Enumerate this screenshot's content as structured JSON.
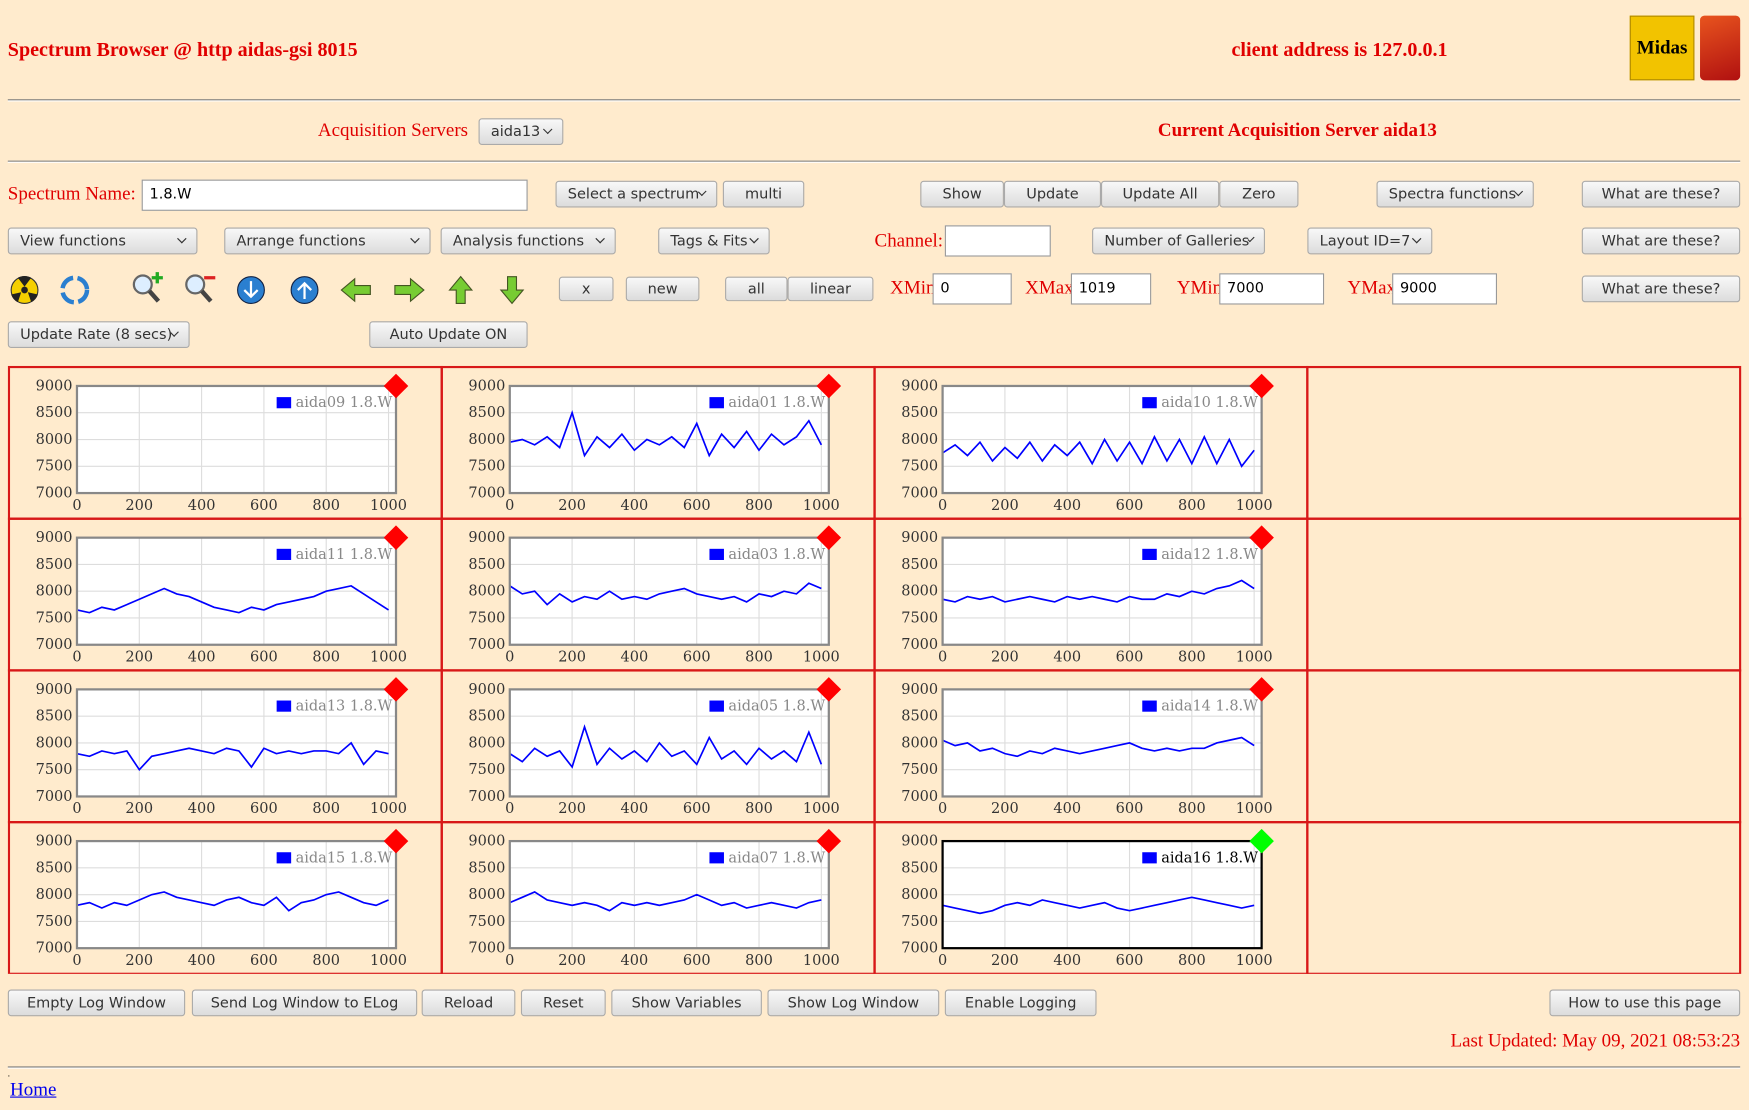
{
  "header": {
    "title": "Spectrum Browser @ http aidas-gsi 8015",
    "client": "client address is 127.0.0.1",
    "logo": "Midas"
  },
  "servers": {
    "label": "Acquisition Servers",
    "selected": "aida13",
    "current": "Current Acquisition Server aida13"
  },
  "row1": {
    "name_label": "Spectrum Name:",
    "name_value": "1.8.W",
    "select_spectrum": "Select a spectrum",
    "multi": "multi",
    "show": "Show",
    "update": "Update",
    "update_all": "Update All",
    "zero": "Zero",
    "spectra_functions": "Spectra functions",
    "help": "What are these?"
  },
  "row2": {
    "view": "View functions",
    "arrange": "Arrange functions",
    "analysis": "Analysis functions",
    "tags": "Tags & Fits",
    "channel_label": "Channel:",
    "galleries": "Number of Galleries",
    "layout": "Layout ID=7",
    "help": "What are these?"
  },
  "row3": {
    "x": "x",
    "new": "new",
    "all": "all",
    "linear": "linear",
    "xmin_label": "XMin",
    "xmin": 0,
    "xmax_label": "XMax",
    "xmax": 1019,
    "ymin_label": "YMin",
    "ymin": 7000,
    "ymax_label": "YMax",
    "ymax": 9000,
    "help": "What are these?"
  },
  "row4": {
    "update_rate": "Update Rate (8 secs)",
    "auto_update": "Auto Update ON"
  },
  "chart_data": [
    {
      "type": "line",
      "status_color": "#ff0000",
      "series": [
        {
          "name": "aida09 1.8.W",
          "color": "#0000ff",
          "values": []
        }
      ],
      "x": [],
      "xlim": [
        0,
        1024
      ],
      "ylim": [
        7000,
        9000
      ],
      "xticks": [
        0,
        200,
        400,
        600,
        800,
        1000
      ],
      "yticks": [
        7000,
        7500,
        8000,
        8500,
        9000
      ],
      "grid": true
    },
    {
      "type": "line",
      "status_color": "#ff0000",
      "series": [
        {
          "name": "aida01 1.8.W",
          "color": "#0000ff",
          "values": [
            7950,
            8000,
            7900,
            8050,
            7850,
            8500,
            7700,
            8050,
            7850,
            8100,
            7800,
            8000,
            7900,
            8050,
            7850,
            8300,
            7700,
            8100,
            7850,
            8150,
            7800,
            8100,
            7900,
            8050,
            8350,
            7900
          ]
        }
      ],
      "x": [
        0,
        40,
        80,
        120,
        160,
        200,
        240,
        280,
        320,
        360,
        400,
        440,
        480,
        520,
        560,
        600,
        640,
        680,
        720,
        760,
        800,
        840,
        880,
        920,
        960,
        1000
      ],
      "xlim": [
        0,
        1024
      ],
      "ylim": [
        7000,
        9000
      ],
      "xticks": [
        0,
        200,
        400,
        600,
        800,
        1000
      ],
      "yticks": [
        7000,
        7500,
        8000,
        8500,
        9000
      ],
      "grid": true
    },
    {
      "type": "line",
      "status_color": "#ff0000",
      "series": [
        {
          "name": "aida10 1.8.W",
          "color": "#0000ff",
          "values": [
            7750,
            7900,
            7700,
            7950,
            7600,
            7850,
            7650,
            7950,
            7600,
            7900,
            7700,
            7950,
            7550,
            8000,
            7600,
            7950,
            7550,
            8050,
            7600,
            8000,
            7550,
            8050,
            7550,
            8000,
            7500,
            7800
          ]
        }
      ],
      "x": [
        0,
        40,
        80,
        120,
        160,
        200,
        240,
        280,
        320,
        360,
        400,
        440,
        480,
        520,
        560,
        600,
        640,
        680,
        720,
        760,
        800,
        840,
        880,
        920,
        960,
        1000
      ],
      "xlim": [
        0,
        1024
      ],
      "ylim": [
        7000,
        9000
      ],
      "xticks": [
        0,
        200,
        400,
        600,
        800,
        1000
      ],
      "yticks": [
        7000,
        7500,
        8000,
        8500,
        9000
      ],
      "grid": true
    },
    {
      "type": "line",
      "status_color": "#ff0000",
      "series": [
        {
          "name": "aida11 1.8.W",
          "color": "#0000ff",
          "values": [
            7650,
            7600,
            7700,
            7650,
            7750,
            7850,
            7950,
            8050,
            7950,
            7900,
            7800,
            7700,
            7650,
            7600,
            7700,
            7650,
            7750,
            7800,
            7850,
            7900,
            8000,
            8050,
            8100,
            7950,
            7800,
            7650
          ]
        }
      ],
      "x": [
        0,
        40,
        80,
        120,
        160,
        200,
        240,
        280,
        320,
        360,
        400,
        440,
        480,
        520,
        560,
        600,
        640,
        680,
        720,
        760,
        800,
        840,
        880,
        920,
        960,
        1000
      ],
      "xlim": [
        0,
        1024
      ],
      "ylim": [
        7000,
        9000
      ],
      "xticks": [
        0,
        200,
        400,
        600,
        800,
        1000
      ],
      "yticks": [
        7000,
        7500,
        8000,
        8500,
        9000
      ],
      "grid": true
    },
    {
      "type": "line",
      "status_color": "#ff0000",
      "series": [
        {
          "name": "aida03 1.8.W",
          "color": "#0000ff",
          "values": [
            8100,
            7950,
            8000,
            7750,
            7950,
            7800,
            7900,
            7850,
            8000,
            7850,
            7900,
            7850,
            7950,
            8000,
            8050,
            7950,
            7900,
            7850,
            7900,
            7800,
            7950,
            7900,
            8000,
            7950,
            8150,
            8050
          ]
        }
      ],
      "x": [
        0,
        40,
        80,
        120,
        160,
        200,
        240,
        280,
        320,
        360,
        400,
        440,
        480,
        520,
        560,
        600,
        640,
        680,
        720,
        760,
        800,
        840,
        880,
        920,
        960,
        1000
      ],
      "xlim": [
        0,
        1024
      ],
      "ylim": [
        7000,
        9000
      ],
      "xticks": [
        0,
        200,
        400,
        600,
        800,
        1000
      ],
      "yticks": [
        7000,
        7500,
        8000,
        8500,
        9000
      ],
      "grid": true
    },
    {
      "type": "line",
      "status_color": "#ff0000",
      "series": [
        {
          "name": "aida12 1.8.W",
          "color": "#0000ff",
          "values": [
            7850,
            7800,
            7900,
            7850,
            7900,
            7800,
            7850,
            7900,
            7850,
            7800,
            7900,
            7850,
            7900,
            7850,
            7800,
            7900,
            7850,
            7850,
            7950,
            7900,
            8000,
            7950,
            8050,
            8100,
            8200,
            8050
          ]
        }
      ],
      "x": [
        0,
        40,
        80,
        120,
        160,
        200,
        240,
        280,
        320,
        360,
        400,
        440,
        480,
        520,
        560,
        600,
        640,
        680,
        720,
        760,
        800,
        840,
        880,
        920,
        960,
        1000
      ],
      "xlim": [
        0,
        1024
      ],
      "ylim": [
        7000,
        9000
      ],
      "xticks": [
        0,
        200,
        400,
        600,
        800,
        1000
      ],
      "yticks": [
        7000,
        7500,
        8000,
        8500,
        9000
      ],
      "grid": true
    },
    {
      "type": "line",
      "status_color": "#ff0000",
      "series": [
        {
          "name": "aida13 1.8.W",
          "color": "#0000ff",
          "values": [
            7800,
            7750,
            7850,
            7800,
            7850,
            7500,
            7750,
            7800,
            7850,
            7900,
            7850,
            7800,
            7900,
            7850,
            7550,
            7900,
            7800,
            7850,
            7800,
            7850,
            7850,
            7800,
            8000,
            7600,
            7850,
            7800
          ]
        }
      ],
      "x": [
        0,
        40,
        80,
        120,
        160,
        200,
        240,
        280,
        320,
        360,
        400,
        440,
        480,
        520,
        560,
        600,
        640,
        680,
        720,
        760,
        800,
        840,
        880,
        920,
        960,
        1000
      ],
      "xlim": [
        0,
        1024
      ],
      "ylim": [
        7000,
        9000
      ],
      "xticks": [
        0,
        200,
        400,
        600,
        800,
        1000
      ],
      "yticks": [
        7000,
        7500,
        8000,
        8500,
        9000
      ],
      "grid": true
    },
    {
      "type": "line",
      "status_color": "#ff0000",
      "series": [
        {
          "name": "aida05 1.8.W",
          "color": "#0000ff",
          "values": [
            7800,
            7650,
            7900,
            7750,
            7850,
            7550,
            8300,
            7600,
            7900,
            7700,
            7850,
            7650,
            8000,
            7750,
            7850,
            7600,
            8100,
            7700,
            7850,
            7600,
            7900,
            7700,
            7850,
            7650,
            8200,
            7600
          ]
        }
      ],
      "x": [
        0,
        40,
        80,
        120,
        160,
        200,
        240,
        280,
        320,
        360,
        400,
        440,
        480,
        520,
        560,
        600,
        640,
        680,
        720,
        760,
        800,
        840,
        880,
        920,
        960,
        1000
      ],
      "xlim": [
        0,
        1024
      ],
      "ylim": [
        7000,
        9000
      ],
      "xticks": [
        0,
        200,
        400,
        600,
        800,
        1000
      ],
      "yticks": [
        7000,
        7500,
        8000,
        8500,
        9000
      ],
      "grid": true
    },
    {
      "type": "line",
      "status_color": "#ff0000",
      "series": [
        {
          "name": "aida14 1.8.W",
          "color": "#0000ff",
          "values": [
            8050,
            7950,
            8000,
            7850,
            7900,
            7800,
            7750,
            7850,
            7800,
            7900,
            7850,
            7800,
            7850,
            7900,
            7950,
            8000,
            7900,
            7850,
            7900,
            7850,
            7900,
            7900,
            8000,
            8050,
            8100,
            7950
          ]
        }
      ],
      "x": [
        0,
        40,
        80,
        120,
        160,
        200,
        240,
        280,
        320,
        360,
        400,
        440,
        480,
        520,
        560,
        600,
        640,
        680,
        720,
        760,
        800,
        840,
        880,
        920,
        960,
        1000
      ],
      "xlim": [
        0,
        1024
      ],
      "ylim": [
        7000,
        9000
      ],
      "xticks": [
        0,
        200,
        400,
        600,
        800,
        1000
      ],
      "yticks": [
        7000,
        7500,
        8000,
        8500,
        9000
      ],
      "grid": true
    },
    {
      "type": "line",
      "status_color": "#ff0000",
      "series": [
        {
          "name": "aida15 1.8.W",
          "color": "#0000ff",
          "values": [
            7800,
            7850,
            7750,
            7850,
            7800,
            7900,
            8000,
            8050,
            7950,
            7900,
            7850,
            7800,
            7900,
            7950,
            7850,
            7800,
            7950,
            7700,
            7850,
            7900,
            8000,
            8050,
            7950,
            7850,
            7800,
            7900
          ]
        }
      ],
      "x": [
        0,
        40,
        80,
        120,
        160,
        200,
        240,
        280,
        320,
        360,
        400,
        440,
        480,
        520,
        560,
        600,
        640,
        680,
        720,
        760,
        800,
        840,
        880,
        920,
        960,
        1000
      ],
      "xlim": [
        0,
        1024
      ],
      "ylim": [
        7000,
        9000
      ],
      "xticks": [
        0,
        200,
        400,
        600,
        800,
        1000
      ],
      "yticks": [
        7000,
        7500,
        8000,
        8500,
        9000
      ],
      "grid": true
    },
    {
      "type": "line",
      "status_color": "#ff0000",
      "series": [
        {
          "name": "aida07 1.8.W",
          "color": "#0000ff",
          "values": [
            7850,
            7950,
            8050,
            7900,
            7850,
            7800,
            7850,
            7800,
            7700,
            7850,
            7800,
            7850,
            7800,
            7850,
            7900,
            8000,
            7900,
            7800,
            7850,
            7750,
            7800,
            7850,
            7800,
            7750,
            7850,
            7900
          ]
        }
      ],
      "x": [
        0,
        40,
        80,
        120,
        160,
        200,
        240,
        280,
        320,
        360,
        400,
        440,
        480,
        520,
        560,
        600,
        640,
        680,
        720,
        760,
        800,
        840,
        880,
        920,
        960,
        1000
      ],
      "xlim": [
        0,
        1024
      ],
      "ylim": [
        7000,
        9000
      ],
      "xticks": [
        0,
        200,
        400,
        600,
        800,
        1000
      ],
      "yticks": [
        7000,
        7500,
        8000,
        8500,
        9000
      ],
      "grid": true
    },
    {
      "type": "line",
      "status_color": "#00ff00",
      "selected": true,
      "series": [
        {
          "name": "aida16 1.8.W",
          "color": "#0000ff",
          "values": [
            7800,
            7750,
            7700,
            7650,
            7700,
            7800,
            7850,
            7800,
            7900,
            7850,
            7800,
            7750,
            7800,
            7850,
            7750,
            7700,
            7750,
            7800,
            7850,
            7900,
            7950,
            7900,
            7850,
            7800,
            7750,
            7800
          ]
        }
      ],
      "x": [
        0,
        40,
        80,
        120,
        160,
        200,
        240,
        280,
        320,
        360,
        400,
        440,
        480,
        520,
        560,
        600,
        640,
        680,
        720,
        760,
        800,
        840,
        880,
        920,
        960,
        1000
      ],
      "xlim": [
        0,
        1024
      ],
      "ylim": [
        7000,
        9000
      ],
      "xticks": [
        0,
        200,
        400,
        600,
        800,
        1000
      ],
      "yticks": [
        7000,
        7500,
        8000,
        8500,
        9000
      ],
      "grid": true
    }
  ],
  "footer": {
    "buttons": [
      "Empty Log Window",
      "Send Log Window to ELog",
      "Reload",
      "Reset",
      "Show Variables",
      "Show Log Window",
      "Enable Logging"
    ],
    "help": "How to use this page",
    "last_updated": "Last Updated: May 09, 2021 08:53:23",
    "dot": ".",
    "home": "Home"
  }
}
